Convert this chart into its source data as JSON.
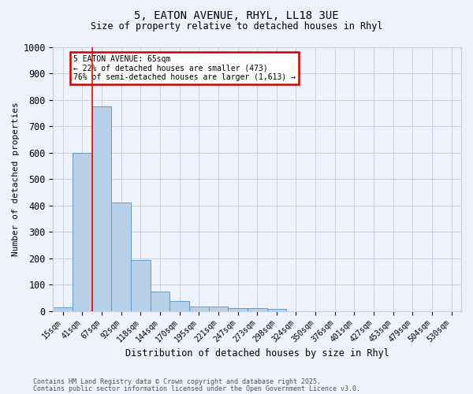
{
  "title1": "5, EATON AVENUE, RHYL, LL18 3UE",
  "title2": "Size of property relative to detached houses in Rhyl",
  "xlabel": "Distribution of detached houses by size in Rhyl",
  "ylabel": "Number of detached properties",
  "categories": [
    "15sqm",
    "41sqm",
    "67sqm",
    "92sqm",
    "118sqm",
    "144sqm",
    "170sqm",
    "195sqm",
    "221sqm",
    "247sqm",
    "273sqm",
    "298sqm",
    "324sqm",
    "350sqm",
    "376sqm",
    "401sqm",
    "427sqm",
    "453sqm",
    "479sqm",
    "504sqm",
    "530sqm"
  ],
  "values": [
    15,
    600,
    775,
    410,
    193,
    75,
    38,
    18,
    17,
    12,
    12,
    7,
    0,
    0,
    0,
    0,
    0,
    0,
    0,
    0,
    0
  ],
  "bar_color": "#b8cfe8",
  "bar_edge_color": "#6699cc",
  "annotation_line1": "5 EATON AVENUE: 65sqm",
  "annotation_line2": "← 22% of detached houses are smaller (473)",
  "annotation_line3": "76% of semi-detached houses are larger (1,613) →",
  "annotation_box_color": "#ffffff",
  "annotation_box_edge": "#cc0000",
  "ylim": [
    0,
    1000
  ],
  "yticks": [
    0,
    100,
    200,
    300,
    400,
    500,
    600,
    700,
    800,
    900,
    1000
  ],
  "footer1": "Contains HM Land Registry data © Crown copyright and database right 2025.",
  "footer2": "Contains public sector information licensed under the Open Government Licence v3.0.",
  "bg_color": "#eef2fa",
  "grid_color": "#c8d0e0"
}
